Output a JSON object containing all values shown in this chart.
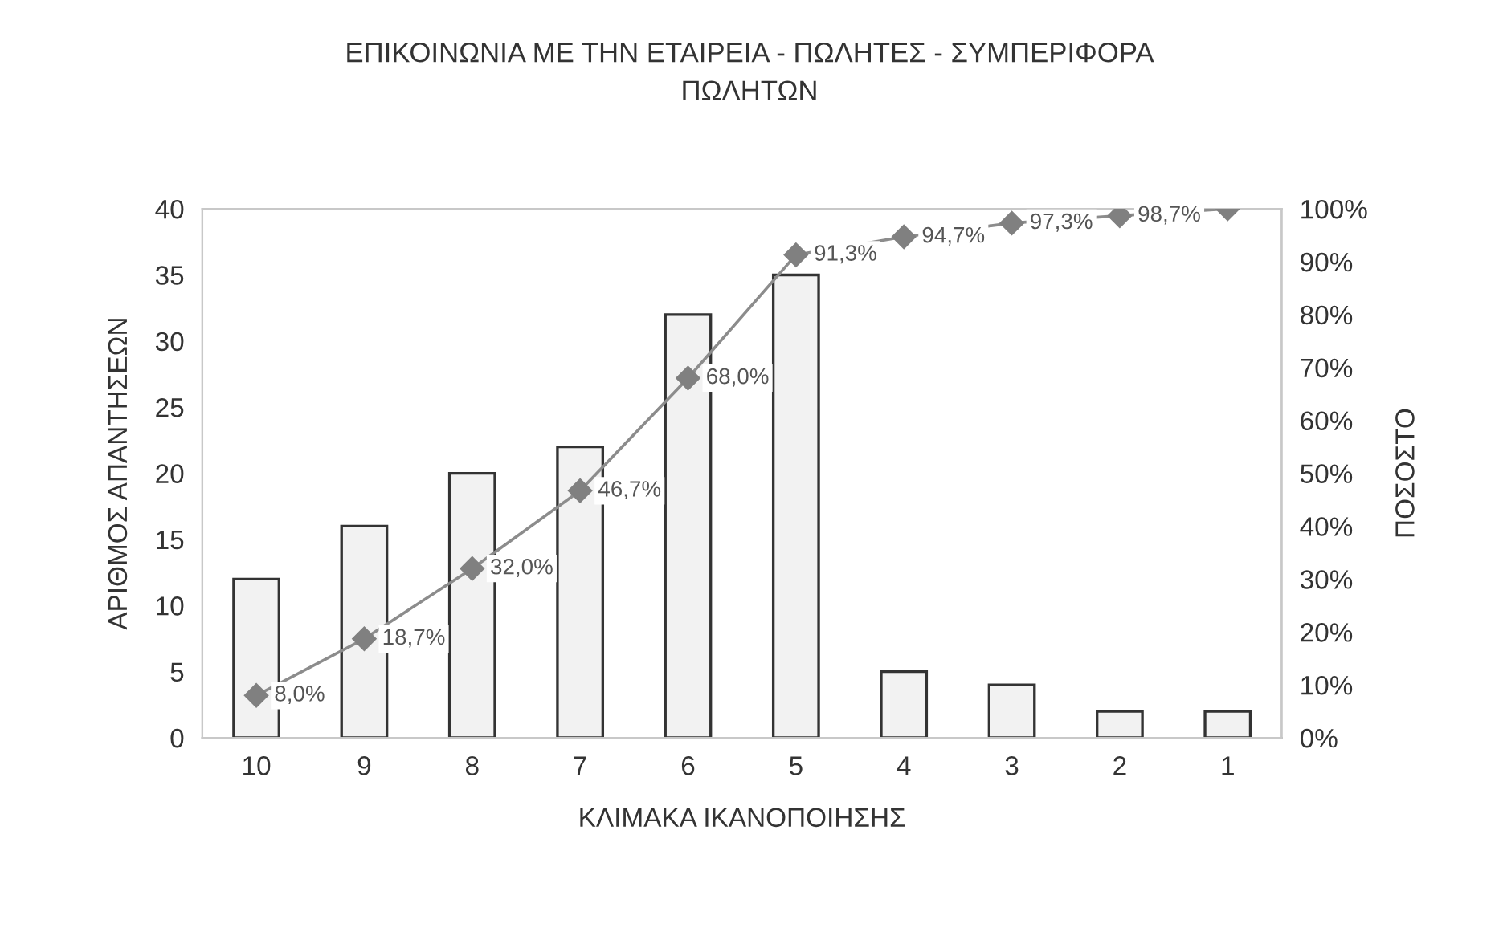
{
  "chart_data": {
    "type": "bar",
    "title": "ΕΠΙΚΟΙΝΩΝΙΑ ΜΕ ΤΗΝ ΕΤΑΙΡΕΙΑ - ΠΩΛΗΤΕΣ - ΣΥΜΠΕΡΙΦΟΡΑ\nΠΩΛΗΤΩΝ",
    "xlabel": "ΚΛΙΜΑΚΑ ΙΚΑΝΟΠΟΙΗΣΗΣ",
    "ylabel": "ΑΡΙΘΜΟΣ ΑΠΑΝΤΗΣΕΩΝ",
    "y2label": "ΠΟΣΟΣΤΟ",
    "categories": [
      "10",
      "9",
      "8",
      "7",
      "6",
      "5",
      "4",
      "3",
      "2",
      "1"
    ],
    "series": [
      {
        "color": "#f2f2f2",
        "values": [
          12,
          16,
          20,
          22,
          32,
          35,
          5,
          4,
          2,
          2
        ]
      },
      {
        "type": "line",
        "axis": "y2",
        "color": "#8c8c8c",
        "marker": "diamond",
        "values": [
          8.0,
          18.7,
          32.0,
          46.7,
          68.0,
          91.3,
          94.7,
          97.3,
          98.7,
          100
        ],
        "value_labels": [
          "8,0%",
          "18,7%",
          "32,0%",
          "46,7%",
          "68,0%",
          "91,3%",
          "94,7%",
          "97,3%",
          "98,7%",
          null
        ]
      }
    ],
    "ylim": [
      0,
      40
    ],
    "yticks": [
      0,
      5,
      10,
      15,
      20,
      25,
      30,
      35,
      40
    ],
    "y2lim": [
      0,
      100
    ],
    "y2ticks": [
      {
        "value": 0,
        "label": "0%"
      },
      {
        "value": 10,
        "label": "10%"
      },
      {
        "value": 20,
        "label": "20%"
      },
      {
        "value": 30,
        "label": "30%"
      },
      {
        "value": 40,
        "label": "40%"
      },
      {
        "value": 50,
        "label": "50%"
      },
      {
        "value": 60,
        "label": "60%"
      },
      {
        "value": 70,
        "label": "70%"
      },
      {
        "value": 80,
        "label": "80%"
      },
      {
        "value": 90,
        "label": "90%"
      },
      {
        "value": 100,
        "label": "100%"
      }
    ],
    "grid": false,
    "legend": false
  }
}
